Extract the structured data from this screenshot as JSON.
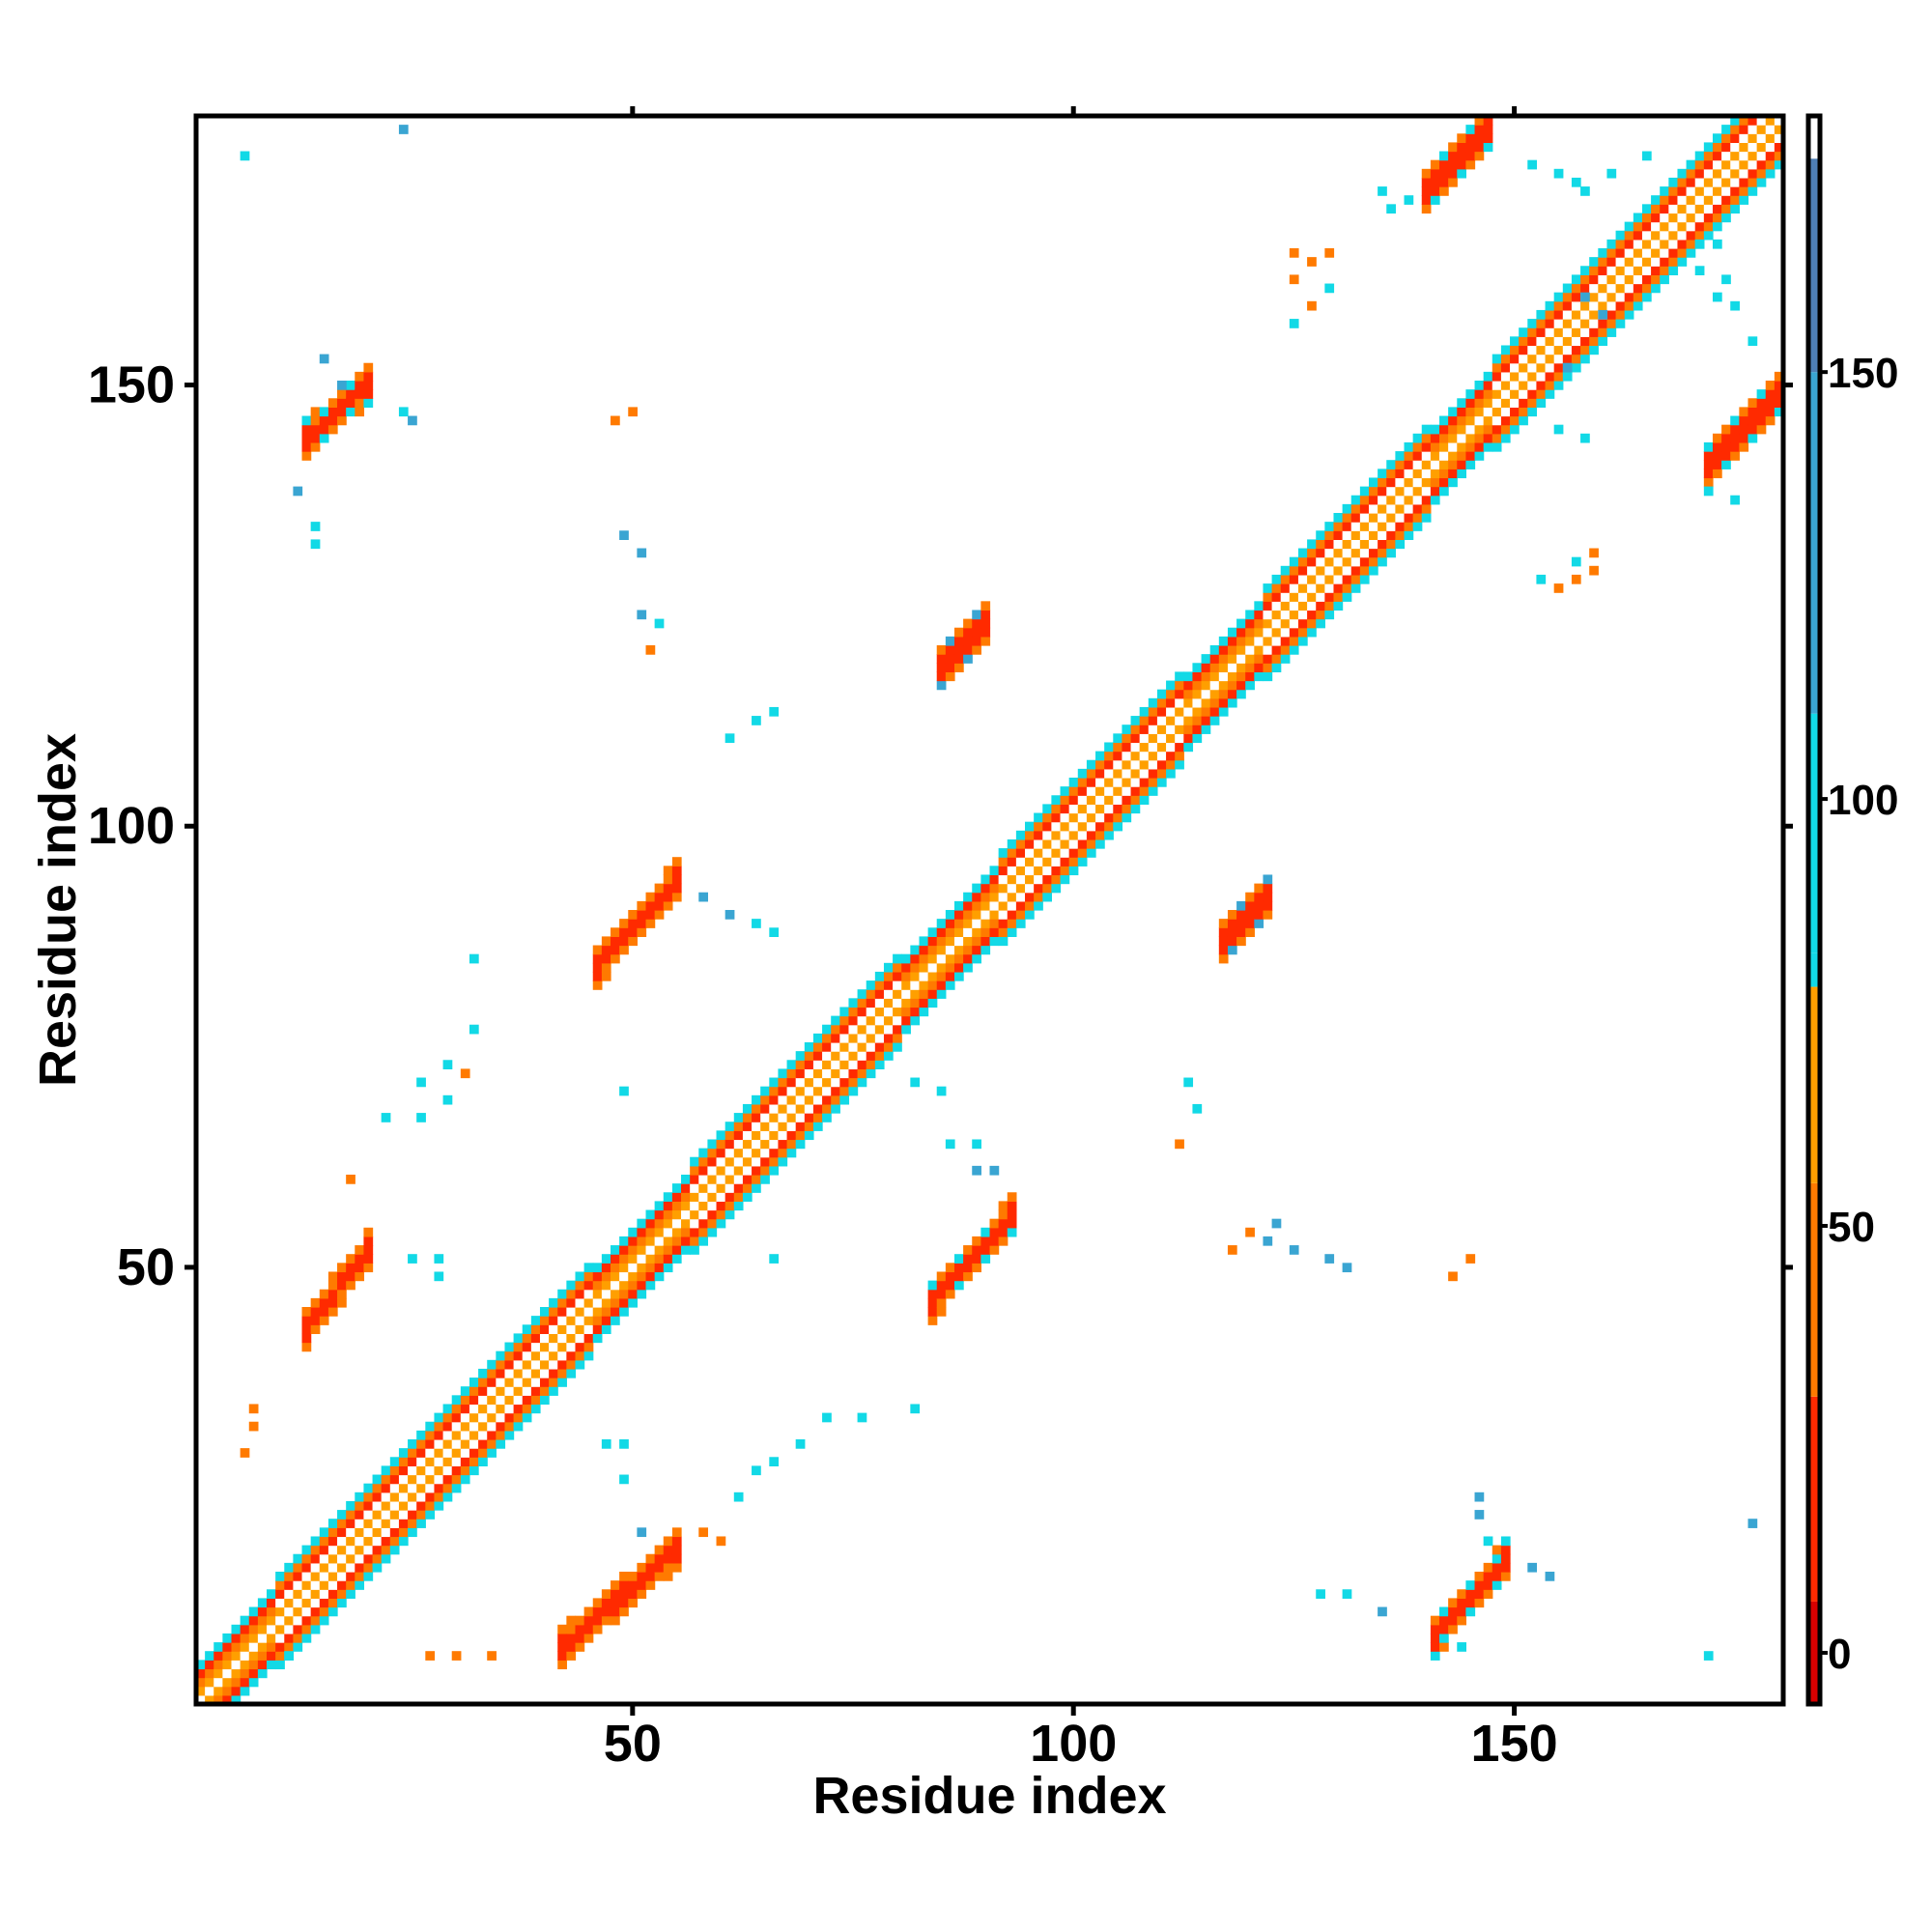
{
  "chart_data": {
    "type": "heatmap",
    "title": "",
    "xlabel": "Residue index",
    "ylabel": "Residue index",
    "xlim": [
      1,
      180
    ],
    "ylim": [
      1,
      180
    ],
    "xticks": [
      50,
      100,
      150
    ],
    "yticks": [
      50,
      100,
      150
    ],
    "grid": false,
    "legend": "colorbar-right",
    "colorbar": {
      "range": [
        -6,
        180
      ],
      "ticks": [
        0,
        50,
        100,
        150
      ],
      "bands": [
        {
          "from": -6,
          "to": 6,
          "color": "#d80000"
        },
        {
          "from": 6,
          "to": 30,
          "color": "#ff2a00"
        },
        {
          "from": 30,
          "to": 55,
          "color": "#ff7a00"
        },
        {
          "from": 55,
          "to": 78,
          "color": "#ff9f00"
        },
        {
          "from": 78,
          "to": 82,
          "color": "#12d9e6"
        },
        {
          "from": 82,
          "to": 110,
          "color": "#12d9e6"
        },
        {
          "from": 110,
          "to": 150,
          "color": "#3aa5d2"
        },
        {
          "from": 150,
          "to": 175,
          "color": "#4e7fb6"
        },
        {
          "from": 175,
          "to": 180,
          "color": "#ffffff"
        }
      ]
    },
    "colors": {
      "red": "#ff2200",
      "dark_red": "#d80000",
      "orange": "#ff9900",
      "dark_orange": "#ff6a00",
      "cyan": "#12d9e6",
      "blue": "#3aa0cc",
      "steel": "#4e7fb6"
    },
    "diagonal_helix_segments": [
      [
        10,
        45
      ],
      [
        57,
        80
      ],
      [
        92,
        112
      ],
      [
        122,
        140
      ],
      [
        148,
        180
      ]
    ],
    "blocks": [
      {
        "x": [
          13,
          20
        ],
        "y": [
          144,
          150
        ],
        "value": 8,
        "halo": 95
      },
      {
        "x": [
          140,
          147
        ],
        "y": [
          172,
          179
        ],
        "value": 8,
        "halo": 95
      },
      {
        "x": [
          172,
          181
        ],
        "y": [
          141,
          150
        ],
        "value": 8,
        "halo": 95
      },
      {
        "x": [
          46,
          55
        ],
        "y": [
          84,
          94
        ],
        "value": 8,
        "halo": 40
      },
      {
        "x": [
          84,
          93
        ],
        "y": [
          46,
          56
        ],
        "value": 8,
        "halo": 95
      },
      {
        "x": [
          13,
          20
        ],
        "y": [
          43,
          52
        ],
        "value": 8,
        "halo": 40
      },
      {
        "x": [
          42,
          55
        ],
        "y": [
          7,
          18
        ],
        "value": 8,
        "halo": 40
      },
      {
        "x": [
          141,
          149
        ],
        "y": [
          8,
          17
        ],
        "value": 8,
        "halo": 95
      },
      {
        "x": [
          85,
          90
        ],
        "y": [
          118,
          123
        ],
        "value": 8,
        "halo": 130
      },
      {
        "x": [
          117,
          122
        ],
        "y": [
          87,
          92
        ],
        "value": 8,
        "halo": 130
      }
    ],
    "scatter": [
      {
        "x": 6,
        "y": 176,
        "value": 100
      },
      {
        "x": 24,
        "y": 179,
        "value": 130
      },
      {
        "x": 15,
        "y": 153,
        "value": 130
      },
      {
        "x": 17,
        "y": 150,
        "value": 130
      },
      {
        "x": 25,
        "y": 146,
        "value": 130
      },
      {
        "x": 24,
        "y": 147,
        "value": 100
      },
      {
        "x": 12,
        "y": 138,
        "value": 130
      },
      {
        "x": 14,
        "y": 134,
        "value": 100
      },
      {
        "x": 14,
        "y": 132,
        "value": 100
      },
      {
        "x": 48,
        "y": 146,
        "value": 40
      },
      {
        "x": 50,
        "y": 147,
        "value": 40
      },
      {
        "x": 49,
        "y": 133,
        "value": 130
      },
      {
        "x": 51,
        "y": 131,
        "value": 130
      },
      {
        "x": 51,
        "y": 124,
        "value": 130
      },
      {
        "x": 53,
        "y": 123,
        "value": 100
      },
      {
        "x": 52,
        "y": 120,
        "value": 40
      },
      {
        "x": 64,
        "y": 112,
        "value": 100
      },
      {
        "x": 66,
        "y": 113,
        "value": 100
      },
      {
        "x": 61,
        "y": 110,
        "value": 100
      },
      {
        "x": 58,
        "y": 92,
        "value": 130
      },
      {
        "x": 61,
        "y": 90,
        "value": 130
      },
      {
        "x": 64,
        "y": 89,
        "value": 100
      },
      {
        "x": 66,
        "y": 88,
        "value": 100
      },
      {
        "x": 32,
        "y": 85,
        "value": 100
      },
      {
        "x": 32,
        "y": 77,
        "value": 100
      },
      {
        "x": 29,
        "y": 73,
        "value": 100
      },
      {
        "x": 31,
        "y": 72,
        "value": 40
      },
      {
        "x": 26,
        "y": 71,
        "value": 100
      },
      {
        "x": 29,
        "y": 69,
        "value": 100
      },
      {
        "x": 49,
        "y": 70,
        "value": 100
      },
      {
        "x": 22,
        "y": 67,
        "value": 100
      },
      {
        "x": 26,
        "y": 67,
        "value": 100
      },
      {
        "x": 18,
        "y": 60,
        "value": 40
      },
      {
        "x": 25,
        "y": 51,
        "value": 100
      },
      {
        "x": 28,
        "y": 51,
        "value": 100
      },
      {
        "x": 28,
        "y": 49,
        "value": 100
      },
      {
        "x": 66,
        "y": 51,
        "value": 100
      },
      {
        "x": 7,
        "y": 34,
        "value": 40
      },
      {
        "x": 7,
        "y": 32,
        "value": 40
      },
      {
        "x": 6,
        "y": 29,
        "value": 40
      },
      {
        "x": 47,
        "y": 30,
        "value": 100
      },
      {
        "x": 49,
        "y": 30,
        "value": 100
      },
      {
        "x": 49,
        "y": 26,
        "value": 100
      },
      {
        "x": 51,
        "y": 20,
        "value": 130
      },
      {
        "x": 60,
        "y": 19,
        "value": 40
      },
      {
        "x": 58,
        "y": 20,
        "value": 40
      },
      {
        "x": 62,
        "y": 24,
        "value": 100
      },
      {
        "x": 64,
        "y": 27,
        "value": 100
      },
      {
        "x": 66,
        "y": 28,
        "value": 100
      },
      {
        "x": 69,
        "y": 30,
        "value": 100
      },
      {
        "x": 72,
        "y": 33,
        "value": 100
      },
      {
        "x": 76,
        "y": 33,
        "value": 100
      },
      {
        "x": 82,
        "y": 34,
        "value": 100
      },
      {
        "x": 27,
        "y": 6,
        "value": 40
      },
      {
        "x": 30,
        "y": 6,
        "value": 40
      },
      {
        "x": 34,
        "y": 6,
        "value": 40
      },
      {
        "x": 11,
        "y": 6,
        "value": 100
      },
      {
        "x": 82,
        "y": 71,
        "value": 100
      },
      {
        "x": 85,
        "y": 70,
        "value": 100
      },
      {
        "x": 86,
        "y": 64,
        "value": 100
      },
      {
        "x": 89,
        "y": 64,
        "value": 100
      },
      {
        "x": 89,
        "y": 61,
        "value": 130
      },
      {
        "x": 91,
        "y": 61,
        "value": 130
      },
      {
        "x": 112,
        "y": 64,
        "value": 40
      },
      {
        "x": 113,
        "y": 71,
        "value": 100
      },
      {
        "x": 114,
        "y": 68,
        "value": 100
      },
      {
        "x": 118,
        "y": 52,
        "value": 40
      },
      {
        "x": 120,
        "y": 54,
        "value": 40
      },
      {
        "x": 122,
        "y": 53,
        "value": 130
      },
      {
        "x": 123,
        "y": 55,
        "value": 130
      },
      {
        "x": 125,
        "y": 52,
        "value": 130
      },
      {
        "x": 129,
        "y": 51,
        "value": 130
      },
      {
        "x": 131,
        "y": 50,
        "value": 130
      },
      {
        "x": 143,
        "y": 49,
        "value": 40
      },
      {
        "x": 145,
        "y": 51,
        "value": 40
      },
      {
        "x": 128,
        "y": 13,
        "value": 100
      },
      {
        "x": 131,
        "y": 13,
        "value": 100
      },
      {
        "x": 135,
        "y": 11,
        "value": 130
      },
      {
        "x": 152,
        "y": 16,
        "value": 130
      },
      {
        "x": 154,
        "y": 15,
        "value": 130
      },
      {
        "x": 177,
        "y": 21,
        "value": 130
      },
      {
        "x": 172,
        "y": 6,
        "value": 100
      },
      {
        "x": 144,
        "y": 7,
        "value": 100
      },
      {
        "x": 146,
        "y": 24,
        "value": 130
      },
      {
        "x": 146,
        "y": 22,
        "value": 130
      },
      {
        "x": 147,
        "y": 19,
        "value": 100
      },
      {
        "x": 125,
        "y": 165,
        "value": 40
      },
      {
        "x": 127,
        "y": 164,
        "value": 40
      },
      {
        "x": 129,
        "y": 165,
        "value": 40
      },
      {
        "x": 125,
        "y": 162,
        "value": 40
      },
      {
        "x": 129,
        "y": 161,
        "value": 100
      },
      {
        "x": 127,
        "y": 159,
        "value": 40
      },
      {
        "x": 125,
        "y": 157,
        "value": 100
      },
      {
        "x": 152,
        "y": 175,
        "value": 100
      },
      {
        "x": 155,
        "y": 174,
        "value": 100
      },
      {
        "x": 157,
        "y": 173,
        "value": 100
      },
      {
        "x": 158,
        "y": 172,
        "value": 100
      },
      {
        "x": 161,
        "y": 174,
        "value": 100
      },
      {
        "x": 135,
        "y": 172,
        "value": 100
      },
      {
        "x": 136,
        "y": 170,
        "value": 100
      },
      {
        "x": 138,
        "y": 171,
        "value": 100
      },
      {
        "x": 171,
        "y": 166,
        "value": 100
      },
      {
        "x": 173,
        "y": 166,
        "value": 100
      },
      {
        "x": 171,
        "y": 163,
        "value": 100
      },
      {
        "x": 174,
        "y": 162,
        "value": 100
      },
      {
        "x": 173,
        "y": 160,
        "value": 100
      },
      {
        "x": 175,
        "y": 159,
        "value": 100
      },
      {
        "x": 177,
        "y": 155,
        "value": 100
      },
      {
        "x": 158,
        "y": 160,
        "value": 130
      },
      {
        "x": 160,
        "y": 158,
        "value": 130
      },
      {
        "x": 156,
        "y": 152,
        "value": 130
      },
      {
        "x": 155,
        "y": 145,
        "value": 100
      },
      {
        "x": 158,
        "y": 144,
        "value": 100
      },
      {
        "x": 172,
        "y": 138,
        "value": 100
      },
      {
        "x": 175,
        "y": 137,
        "value": 100
      },
      {
        "x": 155,
        "y": 127,
        "value": 40
      },
      {
        "x": 157,
        "y": 128,
        "value": 40
      },
      {
        "x": 159,
        "y": 129,
        "value": 40
      },
      {
        "x": 157,
        "y": 130,
        "value": 100
      },
      {
        "x": 159,
        "y": 131,
        "value": 40
      },
      {
        "x": 153,
        "y": 128,
        "value": 100
      },
      {
        "x": 165,
        "y": 176,
        "value": 100
      }
    ]
  }
}
